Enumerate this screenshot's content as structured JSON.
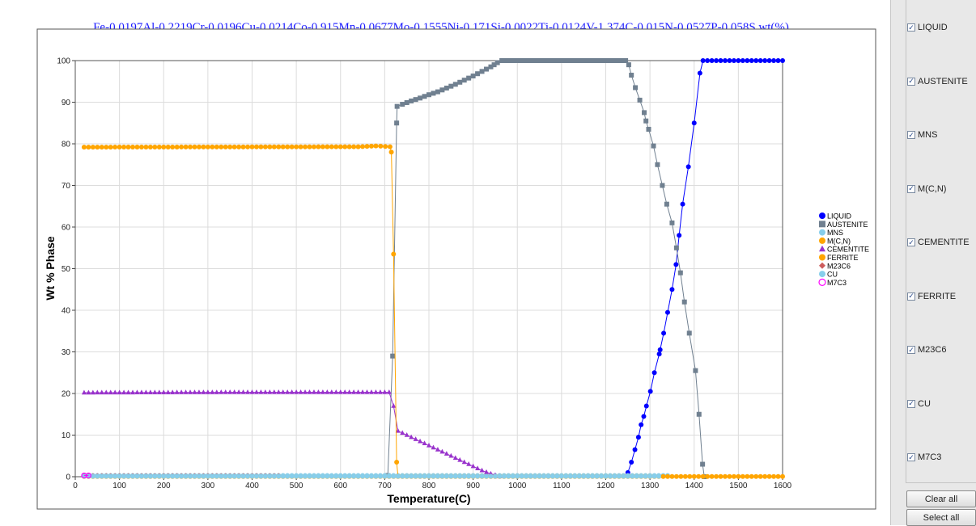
{
  "chart_data": {
    "type": "line",
    "title": "Fe-0.0197Al-0.2219Cr-0.0196Cu-0.0214Co-0.915Mn-0.0677Mo-0.1555Ni-0.171Si-0.0022Ti-0.0124V-1.374C-0.015N-0.0527P-0.058S wt(%)",
    "xlabel": "Temperature(C)",
    "ylabel": "Wt % Phase",
    "xlim": [
      0,
      1600
    ],
    "ylim": [
      0,
      100
    ],
    "xticks": [
      0,
      100,
      200,
      300,
      400,
      500,
      600,
      700,
      800,
      900,
      1000,
      1100,
      1200,
      1300,
      1400,
      1500,
      1600
    ],
    "yticks": [
      0,
      10,
      20,
      30,
      40,
      50,
      60,
      70,
      80,
      90,
      100
    ],
    "grid": true,
    "legend_position": "right",
    "series": [
      {
        "name": "LIQUID",
        "color": "#0000ff",
        "marker": "circle",
        "points": [
          [
            1250,
            1
          ],
          [
            1258,
            3.5
          ],
          [
            1266,
            6.5
          ],
          [
            1274,
            9.5
          ],
          [
            1280,
            12.5
          ],
          [
            1286,
            14.5
          ],
          [
            1292,
            17
          ],
          [
            1301,
            20.5
          ],
          [
            1310,
            25
          ],
          [
            1321,
            29.5
          ],
          [
            1323,
            30.5
          ],
          [
            1331,
            34.5
          ],
          [
            1340,
            39.5
          ],
          [
            1350,
            45
          ],
          [
            1359,
            51
          ],
          [
            1366,
            58
          ],
          [
            1374,
            65.5
          ],
          [
            1387,
            74.5
          ],
          [
            1400,
            85
          ],
          [
            1413,
            97
          ],
          [
            1420,
            100
          ],
          [
            1430,
            100
          ],
          [
            1600,
            100
          ]
        ]
      },
      {
        "name": "AUSTENITE",
        "color": "#708090",
        "marker": "square",
        "points": [
          [
            707,
            0.3
          ],
          [
            718,
            29
          ],
          [
            727,
            85
          ],
          [
            728,
            89
          ],
          [
            740,
            89.5
          ],
          [
            760,
            90.3
          ],
          [
            780,
            91
          ],
          [
            800,
            91.8
          ],
          [
            820,
            92.5
          ],
          [
            840,
            93.4
          ],
          [
            860,
            94.3
          ],
          [
            880,
            95.3
          ],
          [
            900,
            96.3
          ],
          [
            920,
            97.4
          ],
          [
            940,
            98.5
          ],
          [
            955,
            99.5
          ],
          [
            965,
            100
          ],
          [
            1245,
            100
          ],
          [
            1252,
            99
          ],
          [
            1258,
            96.5
          ],
          [
            1267,
            93.5
          ],
          [
            1277,
            90.5
          ],
          [
            1287,
            87.5
          ],
          [
            1291,
            85.5
          ],
          [
            1297,
            83.5
          ],
          [
            1308,
            79.5
          ],
          [
            1317,
            75
          ],
          [
            1328,
            70
          ],
          [
            1338,
            65.5
          ],
          [
            1350,
            61
          ],
          [
            1360,
            55
          ],
          [
            1369,
            49
          ],
          [
            1378,
            42
          ],
          [
            1389,
            34.5
          ],
          [
            1403,
            25.5
          ],
          [
            1411,
            15
          ],
          [
            1419,
            3
          ],
          [
            1423,
            0
          ]
        ]
      },
      {
        "name": "MNS",
        "color": "#87ceeb",
        "marker": "circle",
        "points": [
          [
            20,
            0.3
          ],
          [
            1340,
            0.3
          ]
        ]
      },
      {
        "name": "M(C,N)",
        "color": "#ffa500",
        "marker": "circle",
        "points": [
          [
            20,
            0.05
          ],
          [
            1600,
            0.05
          ]
        ]
      },
      {
        "name": "CEMENTITE",
        "color": "#9933cc",
        "marker": "triangle",
        "points": [
          [
            20,
            20.2
          ],
          [
            400,
            20.3
          ],
          [
            710,
            20.3
          ],
          [
            720,
            17
          ],
          [
            730,
            11
          ],
          [
            740,
            10.5
          ],
          [
            760,
            9.5
          ],
          [
            780,
            8.5
          ],
          [
            800,
            7.5
          ],
          [
            820,
            6.5
          ],
          [
            840,
            5.5
          ],
          [
            860,
            4.5
          ],
          [
            880,
            3.5
          ],
          [
            900,
            2.5
          ],
          [
            920,
            1.5
          ],
          [
            940,
            0.7
          ],
          [
            960,
            0.1
          ]
        ]
      },
      {
        "name": "FERRITE",
        "color": "#ffa500",
        "marker": "circle",
        "points": [
          [
            20,
            79.2
          ],
          [
            640,
            79.3
          ],
          [
            680,
            79.5
          ],
          [
            712,
            79.3
          ],
          [
            715,
            78
          ],
          [
            720,
            53.5
          ],
          [
            727,
            3.5
          ],
          [
            730,
            0.1
          ],
          [
            1300,
            0.1
          ]
        ]
      },
      {
        "name": "M23C6",
        "color": "#cd5c5c",
        "marker": "diamond",
        "points": [
          [
            20,
            0.3
          ],
          [
            460,
            0.3
          ]
        ]
      },
      {
        "name": "CU",
        "color": "#87ceeb",
        "marker": "circle",
        "points": [
          [
            20,
            0.1
          ],
          [
            1320,
            0.1
          ]
        ]
      },
      {
        "name": "M7C3",
        "color": "#ff00ff",
        "marker": "open-circle",
        "points": [
          [
            20,
            0.3
          ],
          [
            30,
            0.3
          ]
        ]
      }
    ]
  },
  "side_panel": {
    "checkboxes": [
      {
        "label": "LIQUID",
        "checked": true
      },
      {
        "label": "AUSTENITE",
        "checked": true
      },
      {
        "label": "MNS",
        "checked": true
      },
      {
        "label": "M(C,N)",
        "checked": true
      },
      {
        "label": "CEMENTITE",
        "checked": true
      },
      {
        "label": "FERRITE",
        "checked": true
      },
      {
        "label": "M23C6",
        "checked": true
      },
      {
        "label": "CU",
        "checked": true
      },
      {
        "label": "M7C3",
        "checked": true
      }
    ],
    "clear_all_label": "Clear all",
    "select_all_label": "Select all"
  }
}
